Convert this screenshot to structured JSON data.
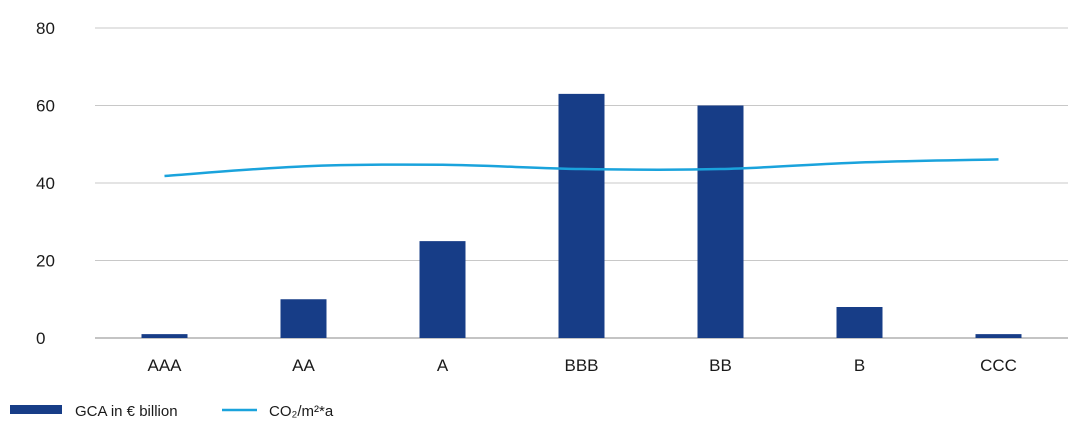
{
  "chart_data": {
    "type": "bar",
    "categories": [
      "AAA",
      "AA",
      "A",
      "BBB",
      "BB",
      "B",
      "CCC"
    ],
    "series": [
      {
        "name": "GCA in € billion",
        "type": "bar",
        "values": [
          1,
          10,
          25,
          63,
          60,
          8,
          1
        ]
      },
      {
        "name": "CO₂/m²*a",
        "type": "line",
        "values": [
          41.8,
          44.3,
          44.7,
          43.6,
          43.6,
          45.3,
          46.1
        ]
      }
    ],
    "yticks": [
      "0",
      "20",
      "40",
      "60",
      "80"
    ],
    "ylim": [
      0,
      80
    ],
    "grid": true,
    "legend_position": "bottom-left",
    "colors": {
      "bar": "#173d87",
      "line": "#1aa3dc",
      "grid": "#c8c8c8",
      "axis": "#8a8a8a"
    }
  }
}
